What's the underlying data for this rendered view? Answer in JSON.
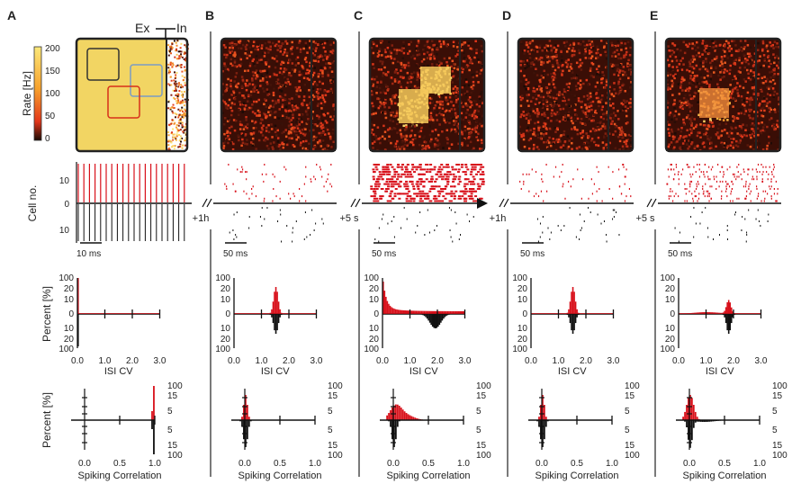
{
  "panels": [
    {
      "label": "A",
      "gap_label": "+1h",
      "scale_bar": "10 ms",
      "state": "initial"
    },
    {
      "label": "B",
      "gap_label": "+5 s",
      "scale_bar": "50 ms",
      "state": "baseline"
    },
    {
      "label": "C",
      "gap_label": "+1h",
      "scale_bar": "50 ms",
      "state": "stimulated"
    },
    {
      "label": "D",
      "gap_label": "+5 s",
      "scale_bar": "50 ms",
      "state": "baseline"
    },
    {
      "label": "E",
      "gap_label": "",
      "scale_bar": "50 ms",
      "state": "stimulated"
    }
  ],
  "ex_in_label": {
    "ex": "Ex",
    "in": "In"
  },
  "colorbar": {
    "title": "Rate [Hz]",
    "ticks": [
      "200",
      "150",
      "100",
      "50",
      "0"
    ],
    "colors": [
      "#fbe87a",
      "#f7a12c",
      "#e2361a",
      "#1a0a05"
    ]
  },
  "raster": {
    "ylabel": "Cell no.",
    "yticks": [
      "10",
      "0",
      "10"
    ],
    "excitatory_color": "#d8101a",
    "inhibitory_color": "#111111"
  },
  "isi": {
    "ylabel": "Percent [%]",
    "yticks": [
      "100",
      "20",
      "10",
      "0",
      "10",
      "20",
      "100"
    ],
    "xticks": [
      "0.0",
      "1.0",
      "2.0",
      "3.0"
    ],
    "xlabel": "ISI CV"
  },
  "corr": {
    "ylabel": "Percent [%]",
    "yticks": [
      "100",
      "15",
      "5",
      "5",
      "15",
      "100"
    ],
    "xticks": [
      "0.0",
      "0.5",
      "1.0"
    ],
    "xlabel": "Spiking Correlation"
  }
}
